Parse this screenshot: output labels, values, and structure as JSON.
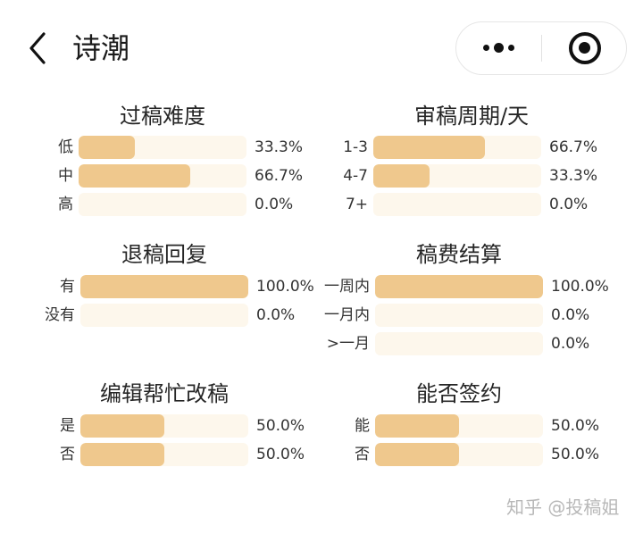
{
  "header": {
    "title": "诗潮"
  },
  "sections": {
    "difficulty": {
      "title": "过稿难度",
      "rows": [
        {
          "label": "低",
          "pct": "33.3%",
          "value": 33.3
        },
        {
          "label": "中",
          "pct": "66.7%",
          "value": 66.7
        },
        {
          "label": "高",
          "pct": "0.0%",
          "value": 0.0
        }
      ]
    },
    "review_period": {
      "title": "审稿周期/天",
      "rows": [
        {
          "label": "1-3",
          "pct": "66.7%",
          "value": 66.7
        },
        {
          "label": "4-7",
          "pct": "33.3%",
          "value": 33.3
        },
        {
          "label": "7+",
          "pct": "0.0%",
          "value": 0.0
        }
      ]
    },
    "rejection_reply": {
      "title": "退稿回复",
      "rows": [
        {
          "label": "有",
          "pct": "100.0%",
          "value": 100.0
        },
        {
          "label": "没有",
          "pct": "0.0%",
          "value": 0.0
        }
      ]
    },
    "payment": {
      "title": "稿费结算",
      "rows": [
        {
          "label": "一周内",
          "pct": "100.0%",
          "value": 100.0
        },
        {
          "label": "一月内",
          "pct": "0.0%",
          "value": 0.0
        },
        {
          "label": ">一月",
          "pct": "0.0%",
          "value": 0.0
        }
      ]
    },
    "editor_help": {
      "title": "编辑帮忙改稿",
      "rows": [
        {
          "label": "是",
          "pct": "50.0%",
          "value": 50.0
        },
        {
          "label": "否",
          "pct": "50.0%",
          "value": 50.0
        }
      ]
    },
    "contract": {
      "title": "能否签约",
      "rows": [
        {
          "label": "能",
          "pct": "50.0%",
          "value": 50.0
        },
        {
          "label": "否",
          "pct": "50.0%",
          "value": 50.0
        }
      ]
    }
  },
  "watermark": "知乎 @投稿姐",
  "colors": {
    "bar_fill": "#efc88d",
    "bar_track": "#fdf7ec",
    "watermark": "#b8b8b8"
  },
  "icons": {
    "back": "chevron-left-icon",
    "more": "more-dots-icon",
    "close": "target-close-icon"
  }
}
